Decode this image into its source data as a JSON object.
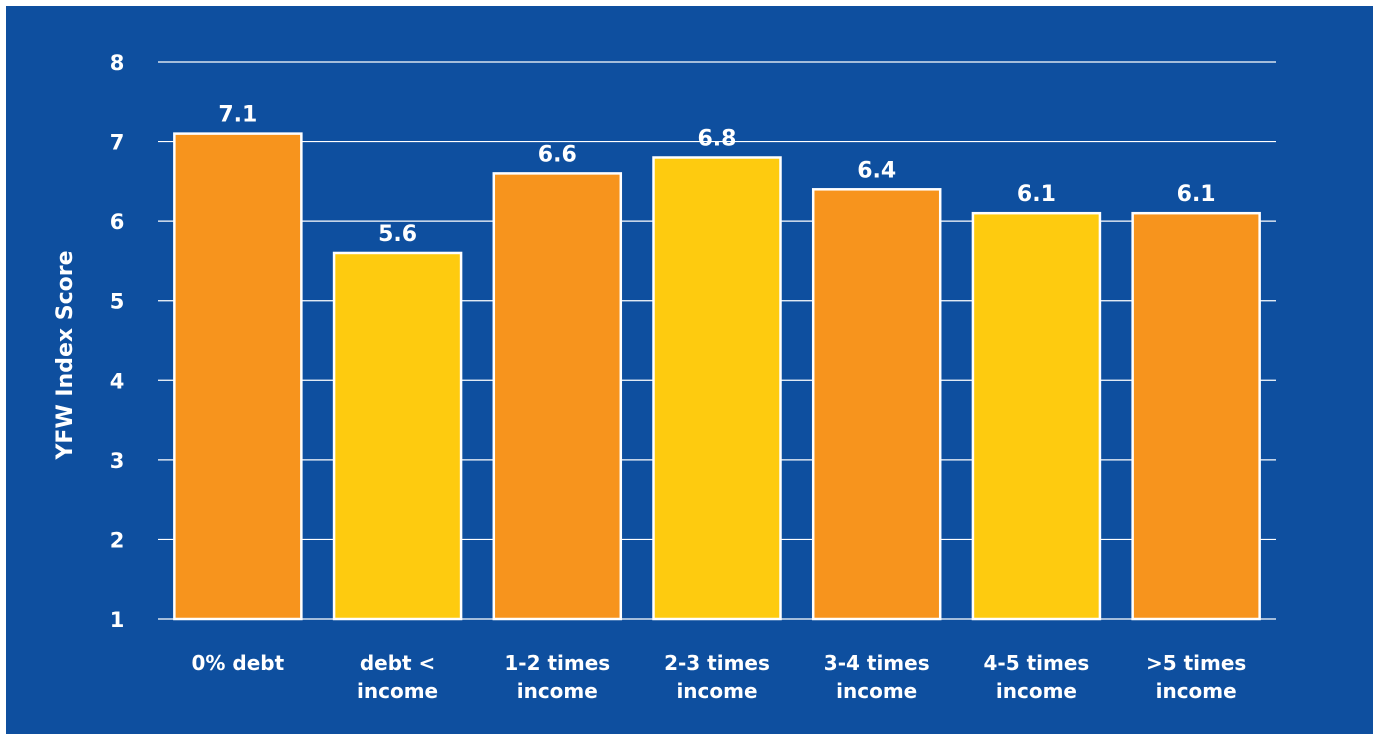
{
  "chart_data": {
    "type": "bar",
    "ylabel": "YFW Index Score",
    "ylim": [
      1,
      8
    ],
    "yticks": [
      "1",
      "2",
      "3",
      "4",
      "5",
      "6",
      "7",
      "8"
    ],
    "grid": true,
    "categories": [
      [
        "0% debt"
      ],
      [
        "debt <",
        "income"
      ],
      [
        "1-2 times",
        "income"
      ],
      [
        "2-3 times",
        "income"
      ],
      [
        "3-4 times",
        "income"
      ],
      [
        "4-5 times",
        "income"
      ],
      [
        ">5 times",
        "income"
      ]
    ],
    "values": [
      7.1,
      5.6,
      6.6,
      6.8,
      6.4,
      6.1,
      6.1
    ],
    "labels": [
      "7.1",
      "5.6",
      "6.6",
      "6.8",
      "6.4",
      "6.1",
      "6.1"
    ],
    "bar_colors": [
      "#f7941d",
      "#fecb0f",
      "#f7941d",
      "#fecb0f",
      "#f7941d",
      "#fecb0f",
      "#f7941d"
    ]
  }
}
